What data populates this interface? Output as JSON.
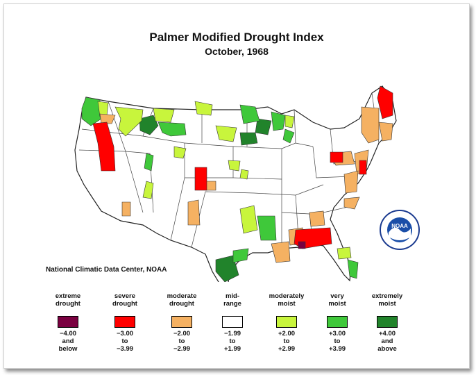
{
  "title": "Palmer Modified Drought Index",
  "subtitle": "October, 1968",
  "credit": "National Climatic Data Center, NOAA",
  "logo": {
    "text": "NOAA",
    "icon": "noaa-logo-icon"
  },
  "legend": [
    {
      "label": "extreme\ndrought",
      "range": "−4.00\nand\nbelow",
      "color": "#7a0040"
    },
    {
      "label": "severe\ndrought",
      "range": "−3.00\nto\n−3.99",
      "color": "#ff0000"
    },
    {
      "label": "moderate\ndrought",
      "range": "−2.00\nto\n−2.99",
      "color": "#f5b162"
    },
    {
      "label": "mid-\nrange",
      "range": "−1.99\nto\n+1.99",
      "color": "#ffffff"
    },
    {
      "label": "moderately\nmoist",
      "range": "+2.00\nto\n+2.99",
      "color": "#c8f53c"
    },
    {
      "label": "very\nmoist",
      "range": "+3.00\nto\n+3.99",
      "color": "#3fc83a"
    },
    {
      "label": "extremely\nmoist",
      "range": "+4.00\nand\nabove",
      "color": "#21832b"
    }
  ]
}
